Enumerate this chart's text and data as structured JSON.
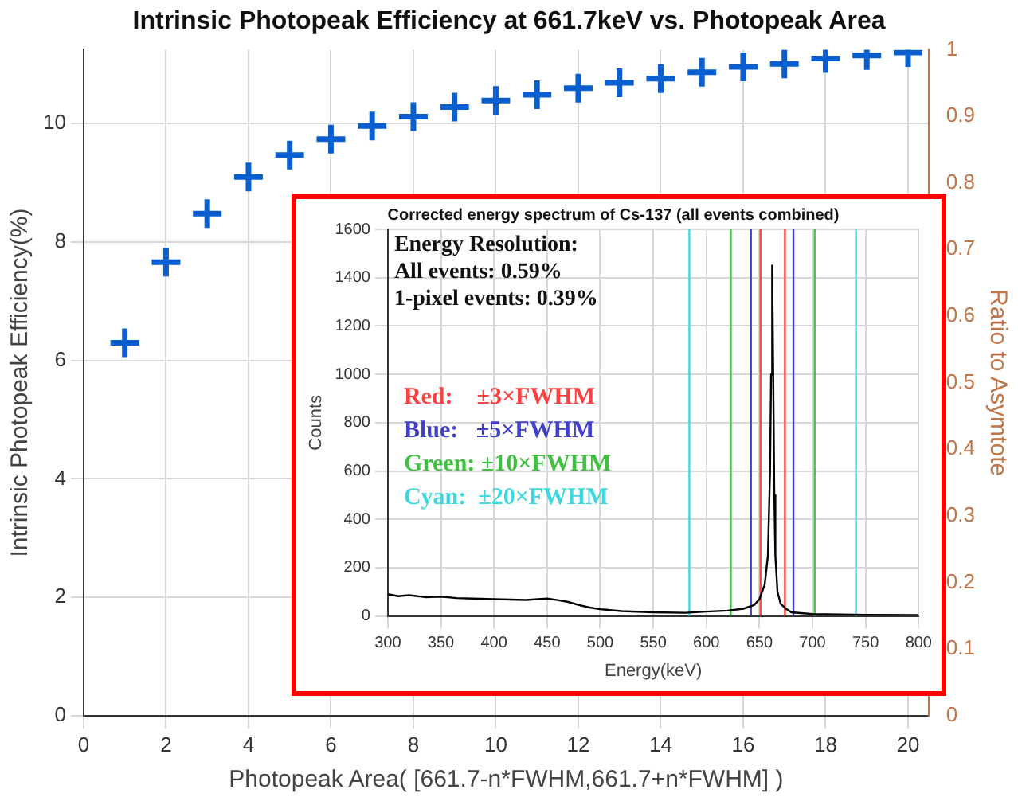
{
  "chart_data": [
    {
      "type": "scatter",
      "title": "Intrinsic Photopeak Efficiency at 661.7keV vs. Photopeak Area",
      "xlabel": "Photopeak Area( [661.7-n*FWHM,661.7+n*FWHM] )",
      "ylabel": "Intrinsic Photopeak Efficiency(%)",
      "y2label": "Ratio to Asymtote",
      "x": [
        1,
        2,
        3,
        4,
        5,
        6,
        7,
        8,
        9,
        10,
        11,
        12,
        13,
        14,
        15,
        16,
        17,
        18,
        19,
        20
      ],
      "series": [
        {
          "color": "#0a5fd0",
          "values": [
            6.3,
            7.66,
            8.48,
            9.1,
            9.47,
            9.74,
            9.96,
            10.12,
            10.28,
            10.39,
            10.49,
            10.6,
            10.69,
            10.76,
            10.87,
            10.96,
            11.01,
            11.1,
            11.15,
            11.2
          ]
        }
      ],
      "xlim": [
        0,
        20.5
      ],
      "xticks": [
        0,
        2,
        4,
        6,
        8,
        10,
        12,
        14,
        16,
        18,
        20
      ],
      "ylim": [
        0,
        11.25
      ],
      "yticks": [
        0,
        2,
        4,
        6,
        8,
        10
      ],
      "y2lim": [
        0,
        1
      ],
      "y2ticks": [
        0,
        0.1,
        0.2,
        0.3,
        0.4,
        0.5,
        0.6,
        0.7,
        0.8,
        0.9,
        1
      ],
      "marker": "cross",
      "grid": true,
      "legend": false
    },
    {
      "type": "line",
      "title": "Corrected energy spectrum of Cs-137 (all events combined)",
      "xlabel": "Energy(keV)",
      "ylabel": "Counts",
      "x": [
        300,
        310,
        320,
        335,
        350,
        365,
        380,
        400,
        415,
        430,
        450,
        460,
        470,
        480,
        490,
        500,
        520,
        550,
        580,
        600,
        620,
        635,
        645,
        650,
        655,
        658,
        660,
        661,
        662,
        663,
        664,
        665,
        667,
        670,
        675,
        680,
        700,
        750,
        800
      ],
      "series": [
        {
          "color": "#000000",
          "values": [
            90,
            82,
            86,
            78,
            80,
            74,
            72,
            70,
            68,
            66,
            72,
            66,
            58,
            45,
            35,
            28,
            20,
            15,
            13,
            18,
            22,
            30,
            45,
            70,
            130,
            250,
            600,
            1000,
            1450,
            1000,
            500,
            250,
            100,
            50,
            30,
            15,
            8,
            5,
            4
          ]
        }
      ],
      "xlim": [
        300,
        800
      ],
      "xticks": [
        300,
        350,
        400,
        450,
        500,
        550,
        600,
        650,
        700,
        750,
        800
      ],
      "ylim": [
        0,
        1600
      ],
      "yticks": [
        0,
        200,
        400,
        600,
        800,
        1000,
        1200,
        1400,
        1600
      ],
      "ref_lines": [
        {
          "axis": "x",
          "value": 651,
          "color": "#ff4040"
        },
        {
          "axis": "x",
          "value": 674,
          "color": "#ff4040"
        },
        {
          "axis": "x",
          "value": 642,
          "color": "#4040c8"
        },
        {
          "axis": "x",
          "value": 682,
          "color": "#4040c8"
        },
        {
          "axis": "x",
          "value": 623,
          "color": "#40c040"
        },
        {
          "axis": "x",
          "value": 702,
          "color": "#40c040"
        },
        {
          "axis": "x",
          "value": 584,
          "color": "#40d8e0"
        },
        {
          "axis": "x",
          "value": 741,
          "color": "#40d8e0"
        }
      ],
      "annotations": [
        "Energy Resolution:",
        "All events: 0.59%",
        "1-pixel events: 0.39%",
        "Red:    ±3×FWHM",
        "Blue:   ±5×FWHM",
        "Green: ±10×FWHM",
        "Cyan:  ±20×FWHM"
      ],
      "marker": "none",
      "line_style": "solid",
      "grid": true,
      "legend": false
    }
  ]
}
